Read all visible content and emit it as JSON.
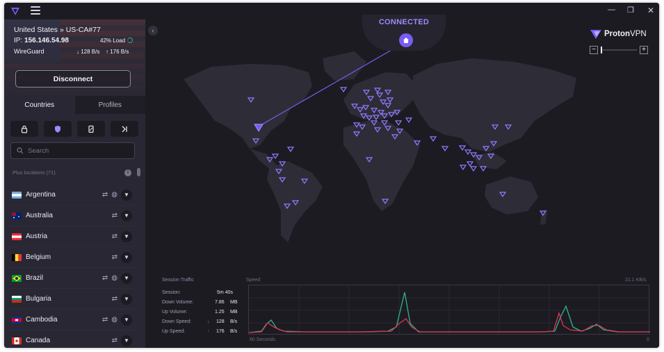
{
  "sidebar": {
    "server_name": "United States » US-CA#77",
    "ip_label": "IP:",
    "ip_value": "156.146.54.98",
    "load": "42% Load",
    "protocol": "WireGuard",
    "download_rate": "↓ 128 B/s",
    "upload_rate": "↑ 176 B/s",
    "disconnect_label": "Disconnect",
    "tabs": [
      {
        "label": "Countries"
      },
      {
        "label": "Profiles"
      }
    ],
    "search_placeholder": "Search",
    "plus_locations": "Plus locations (71)",
    "countries": [
      {
        "name": "Argentina",
        "globe": true
      },
      {
        "name": "Australia",
        "globe": false
      },
      {
        "name": "Austria",
        "globe": false
      },
      {
        "name": "Belgium",
        "globe": false
      },
      {
        "name": "Brazil",
        "globe": true
      },
      {
        "name": "Bulgaria",
        "globe": false
      },
      {
        "name": "Cambodia",
        "globe": true
      },
      {
        "name": "Canada",
        "globe": false
      }
    ]
  },
  "header": {
    "status": "CONNECTED",
    "brand": "Proton",
    "brand_suffix": "VPN"
  },
  "traffic": {
    "title": "Session Traffic",
    "speed_label": "Speed",
    "max_speed": "21.1 KB/s",
    "x_left": "60 Seconds",
    "x_right": "0",
    "stats": [
      {
        "label": "Session:",
        "value": "5m 40s",
        "unit": ""
      },
      {
        "label": "Down Volume:",
        "value": "7.86",
        "unit": "MB"
      },
      {
        "label": "Up Volume:",
        "value": "1.25",
        "unit": "MB"
      },
      {
        "label": "Down Speed:",
        "value": "128",
        "unit": "B/s"
      },
      {
        "label": "Up Speed:",
        "value": "176",
        "unit": "B/s"
      }
    ]
  },
  "colors": {
    "accent": "#7a5cf5",
    "connected": "#9d8bff",
    "download_line": "#2fb38d",
    "upload_line": "#e0344f"
  }
}
